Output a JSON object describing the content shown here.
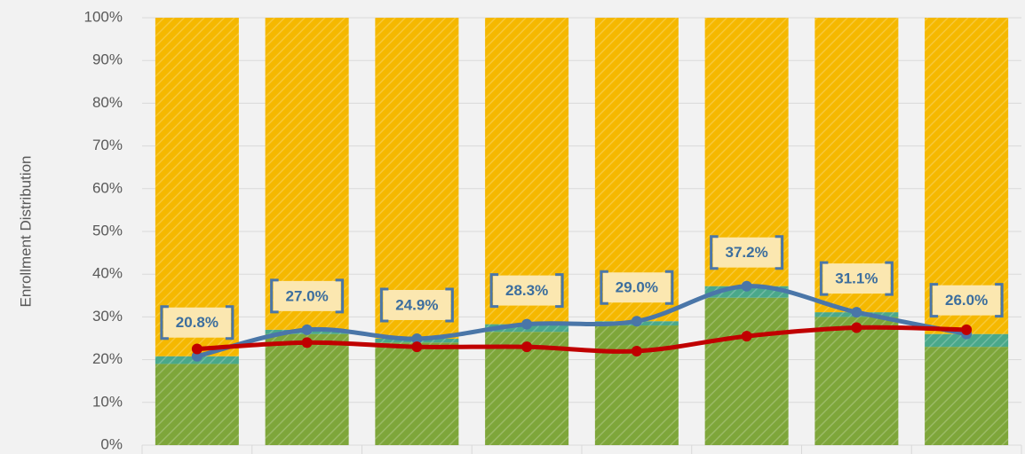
{
  "chart_data": {
    "type": "bar",
    "y_label": "Enrollment Distribution",
    "categories": [
      null,
      null,
      null,
      null,
      null,
      null,
      null,
      null
    ],
    "ylim": [
      0,
      100
    ],
    "yticks": [
      {
        "value": 0,
        "label": "0%"
      },
      {
        "value": 10,
        "label": "10%"
      },
      {
        "value": 20,
        "label": "20%"
      },
      {
        "value": 30,
        "label": "30%"
      },
      {
        "value": 40,
        "label": "40%"
      },
      {
        "value": 50,
        "label": "50%"
      },
      {
        "value": 60,
        "label": "60%"
      },
      {
        "value": 70,
        "label": "70%"
      },
      {
        "value": 80,
        "label": "80%"
      },
      {
        "value": 90,
        "label": "90%"
      },
      {
        "value": 100,
        "label": "100%"
      }
    ],
    "grid": true,
    "series": [
      {
        "type": "bar",
        "color": "#7ea63a",
        "values": [
          19,
          26,
          24,
          26.5,
          28,
          34.5,
          30,
          23
        ]
      },
      {
        "type": "bar",
        "color": "#4aa88a",
        "values": [
          1.8,
          1,
          0.9,
          1.8,
          1,
          2.7,
          1.1,
          3
        ]
      },
      {
        "type": "bar",
        "color": "#f5b800",
        "values": [
          79.2,
          73,
          75.1,
          71.7,
          71,
          62.8,
          68.9,
          74
        ]
      },
      {
        "type": "line",
        "color": "#4a76a8",
        "values": [
          20.8,
          27.0,
          24.9,
          28.3,
          29.0,
          37.2,
          31.1,
          26.0
        ],
        "value_labels": [
          "20.8%",
          "27.0%",
          "24.9%",
          "28.3%",
          "29.0%",
          "37.2%",
          "31.1%",
          "26.0%"
        ]
      },
      {
        "type": "line",
        "color": "#c00000",
        "values": [
          22.5,
          24,
          23,
          23,
          22,
          25.5,
          27.5,
          27
        ]
      }
    ]
  }
}
